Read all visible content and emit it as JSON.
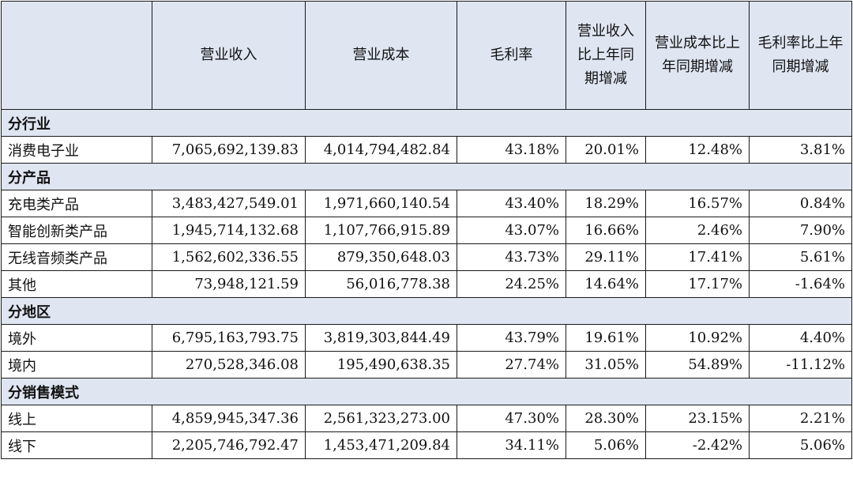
{
  "header": {
    "blank": "",
    "revenue": "营业收入",
    "cost": "营业成本",
    "margin": "毛利率",
    "revenue_change": "营业收入比上年同期增减",
    "cost_change": "营业成本比上年同期增减",
    "margin_change": "毛利率比上年同期增减"
  },
  "sections": [
    {
      "title": "分行业",
      "rows": [
        [
          "消费电子业",
          "7,065,692,139.83",
          "4,014,794,482.84",
          "43.18%",
          "20.01%",
          "12.48%",
          "3.81%"
        ]
      ]
    },
    {
      "title": "分产品",
      "rows": [
        [
          "充电类产品",
          "3,483,427,549.01",
          "1,971,660,140.54",
          "43.40%",
          "18.29%",
          "16.57%",
          "0.84%"
        ],
        [
          "智能创新类产品",
          "1,945,714,132.68",
          "1,107,766,915.89",
          "43.07%",
          "16.66%",
          "2.46%",
          "7.90%"
        ],
        [
          "无线音频类产品",
          "1,562,602,336.55",
          "879,350,648.03",
          "43.73%",
          "29.11%",
          "17.41%",
          "5.61%"
        ],
        [
          "其他",
          "73,948,121.59",
          "56,016,778.38",
          "24.25%",
          "14.64%",
          "17.17%",
          "-1.64%"
        ]
      ]
    },
    {
      "title": "分地区",
      "rows": [
        [
          "境外",
          "6,795,163,793.75",
          "3,819,303,844.49",
          "43.79%",
          "19.61%",
          "10.92%",
          "4.40%"
        ],
        [
          "境内",
          "270,528,346.08",
          "195,490,638.35",
          "27.74%",
          "31.05%",
          "54.89%",
          "-11.12%"
        ]
      ]
    },
    {
      "title": "分销售模式",
      "rows": [
        [
          "线上",
          "4,859,945,347.36",
          "2,561,323,273.00",
          "47.30%",
          "28.30%",
          "23.15%",
          "2.21%"
        ],
        [
          "线下",
          "2,205,746,792.47",
          "1,453,471,209.84",
          "34.11%",
          "5.06%",
          "-2.42%",
          "5.06%"
        ]
      ]
    }
  ]
}
